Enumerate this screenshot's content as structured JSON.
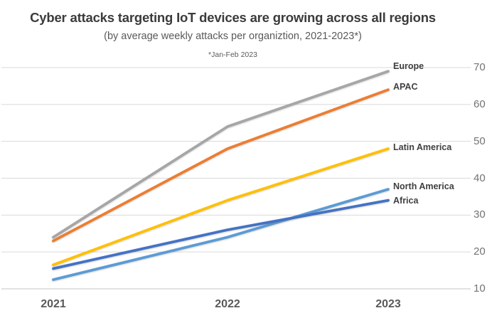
{
  "chart_data": {
    "type": "line",
    "title": "Cyber attacks targeting IoT devices are growing across all regions",
    "subtitle": "(by average weekly attacks per organiztion, 2021-2023*)",
    "footnote": "*Jan-Feb 2023",
    "categories": [
      "2021",
      "2022",
      "2023"
    ],
    "series": [
      {
        "name": "Europe",
        "color": "#a6a6a6",
        "values": [
          24,
          54,
          69
        ]
      },
      {
        "name": "APAC",
        "color": "#ed7d31",
        "values": [
          23,
          48,
          64
        ]
      },
      {
        "name": "Latin America",
        "color": "#ffc000",
        "values": [
          16.5,
          34,
          48
        ]
      },
      {
        "name": "North America",
        "color": "#5b9bd5",
        "values": [
          12.5,
          24,
          37
        ]
      },
      {
        "name": "Africa",
        "color": "#4472c4",
        "values": [
          15.5,
          26,
          34
        ]
      }
    ],
    "ylim": [
      10,
      70
    ],
    "yticks": [
      10,
      20,
      30,
      40,
      50,
      60,
      70
    ],
    "grid": true,
    "y_axis_side": "right",
    "legend_position": "end-of-line-labels",
    "gridline_color": "#d9d9d9",
    "axis_line_color": "#c6c6c6",
    "axis_label_color": "#737373",
    "series_label_color": "#3f3f3f"
  }
}
